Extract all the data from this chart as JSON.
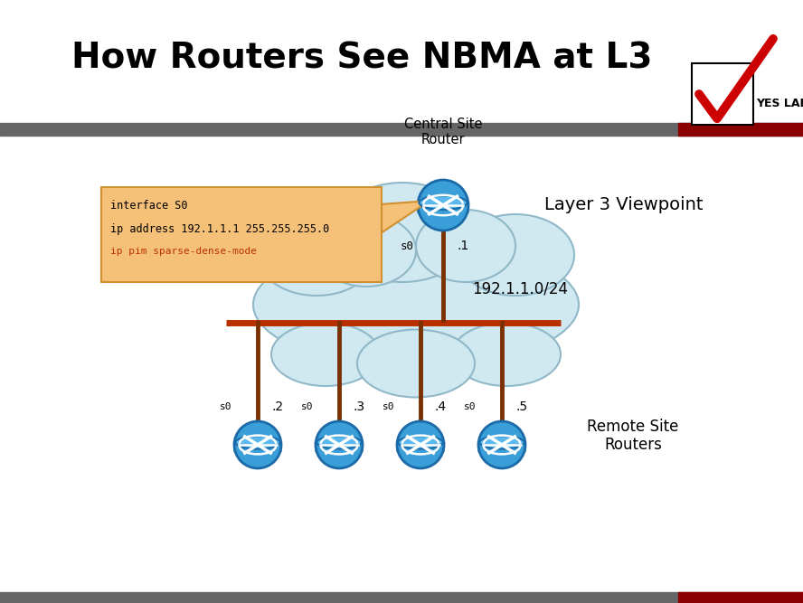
{
  "title": "How Routers See NBMA at L3",
  "bg_color": "#ffffff",
  "header_bar_color": "#666666",
  "header_bar2_color": "#8b0000",
  "title_fontsize": 28,
  "central_label": "Central Site\nRouter",
  "layer3_label": "Layer 3 Viewpoint",
  "network_label": "192.1.1.0/24",
  "remote_label": "Remote Site\nRouters",
  "code_line1": "interface S0",
  "code_line2": "ip address 192.1.1.1 255.255.255.0",
  "code_line3": "ip pim sparse-dense-mode",
  "router_color": "#3a9fd8",
  "router_edge_color": "#1a6aa8",
  "router_body_color": "#2288cc",
  "vertical_line_color": "#7B3000",
  "hbar_color": "#b83000",
  "cloud_color": "#d0e8f0",
  "cloud_edge": "#90b8c8",
  "code_bg": "#f5c077",
  "code_edge": "#d09030",
  "yeslab_box_color": "#ffffff"
}
